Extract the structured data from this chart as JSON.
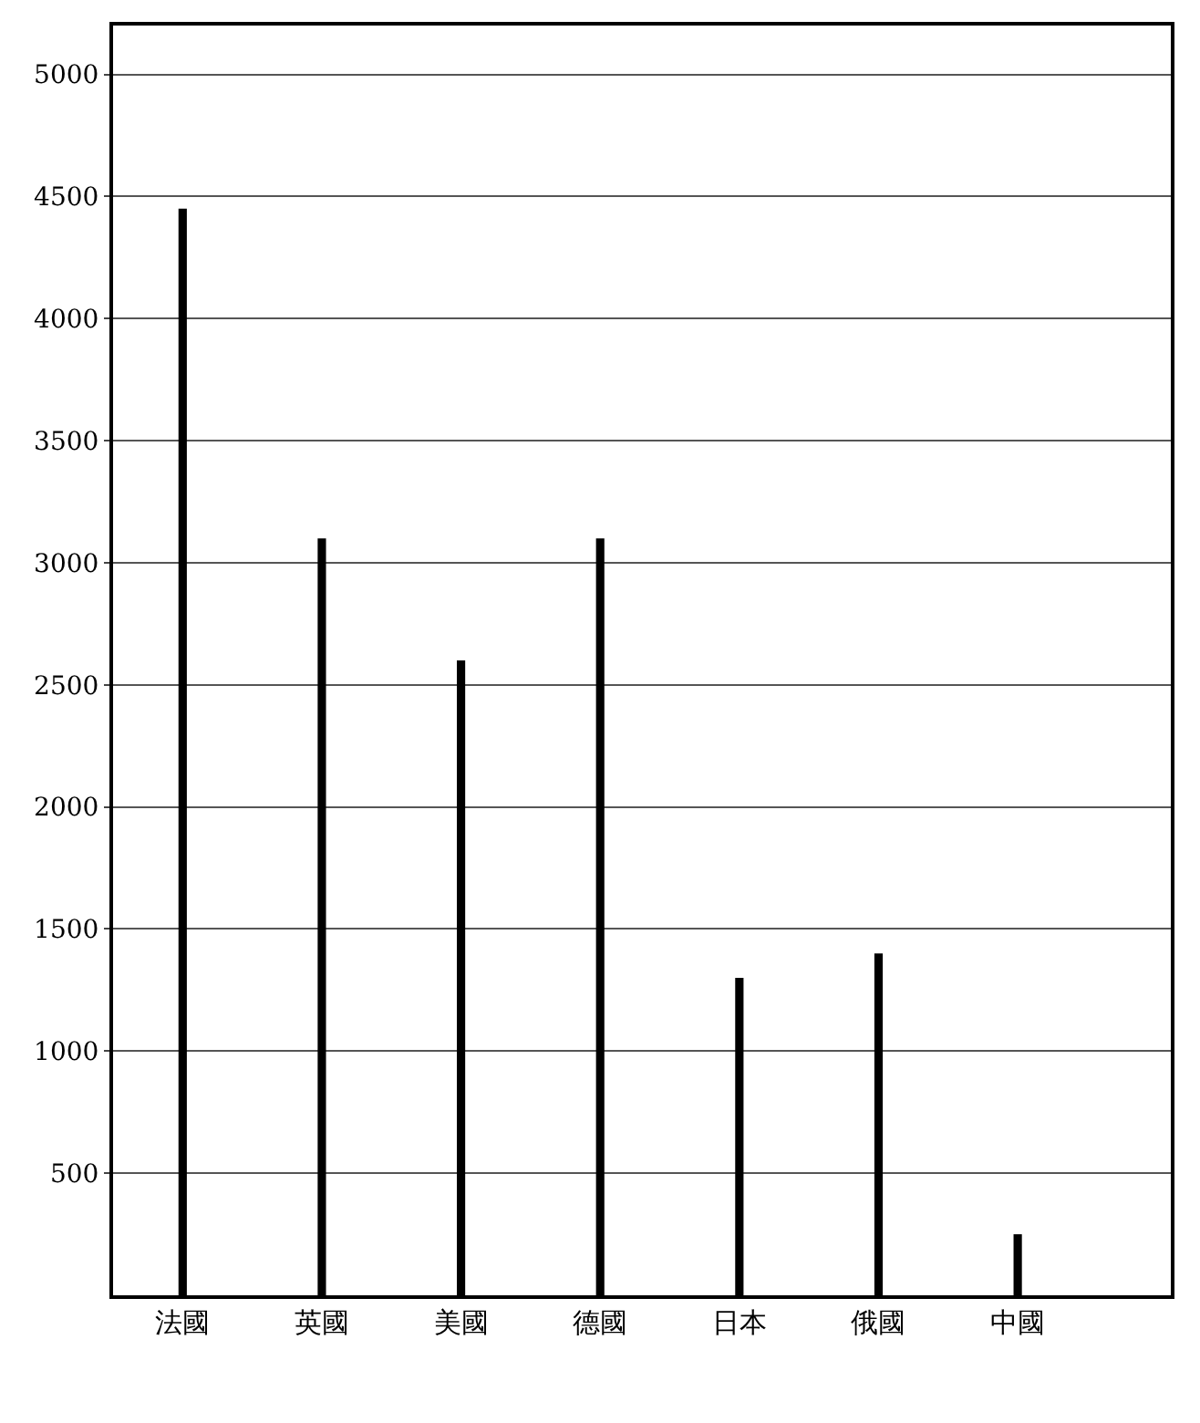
{
  "chart_data": {
    "type": "bar",
    "categories": [
      "法國",
      "英國",
      "美國",
      "德國",
      "日本",
      "俄國",
      "中國"
    ],
    "values": [
      4450,
      3100,
      2600,
      3100,
      1300,
      1400,
      250
    ],
    "color": "#000000",
    "ylim": [
      0,
      5200
    ],
    "yticks": [
      500,
      1000,
      1500,
      2000,
      2500,
      3000,
      3500,
      4000,
      4500,
      5000
    ],
    "grid": true
  }
}
